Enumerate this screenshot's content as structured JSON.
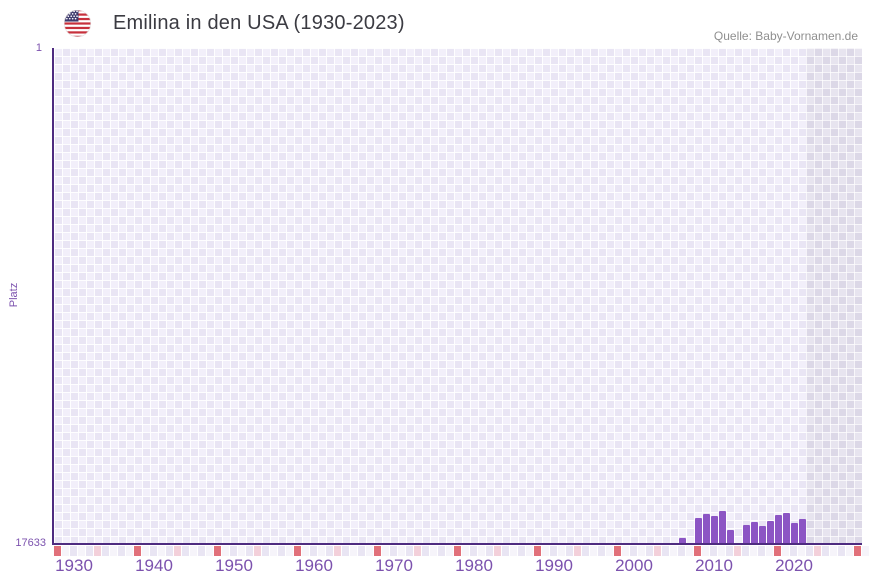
{
  "header": {
    "title": "Emilina in den USA (1930-2023)",
    "source": "Quelle: Baby-Vornamen.de",
    "flag": "usa-flag-icon"
  },
  "chart_data": {
    "type": "bar",
    "title": "Emilina in den USA (1930-2023)",
    "xlabel": "",
    "ylabel": "Platz",
    "y_axis": {
      "top_label": "1",
      "bottom_label": "17633",
      "min": 1,
      "max": 17633,
      "inverted": true
    },
    "x_range": [
      1928,
      2029
    ],
    "x_ticks": [
      "1930",
      "1940",
      "1950",
      "1960",
      "1970",
      "1980",
      "1990",
      "2000",
      "2010",
      "2020"
    ],
    "grid": true,
    "legend": false,
    "series": [
      {
        "name": "Platz",
        "points": [
          {
            "year": 2006,
            "rank": 17455
          },
          {
            "year": 2008,
            "rank": 16740
          },
          {
            "year": 2009,
            "rank": 16605
          },
          {
            "year": 2010,
            "rank": 16685
          },
          {
            "year": 2011,
            "rank": 16510
          },
          {
            "year": 2012,
            "rank": 17175
          },
          {
            "year": 2014,
            "rank": 16995
          },
          {
            "year": 2015,
            "rank": 16900
          },
          {
            "year": 2016,
            "rank": 17045
          },
          {
            "year": 2017,
            "rank": 16835
          },
          {
            "year": 2018,
            "rank": 16640
          },
          {
            "year": 2019,
            "rank": 16570
          },
          {
            "year": 2020,
            "rank": 16910
          },
          {
            "year": 2021,
            "rank": 16785
          }
        ]
      }
    ],
    "no_data_years": [
      2007,
      2013,
      2022,
      2023
    ],
    "future_band": {
      "start_year": 2022,
      "end_year": 2028
    },
    "axis_marker_strip": {
      "red_years": [
        1928,
        1938,
        1948,
        1958,
        1968,
        1978,
        1988,
        1998,
        2008,
        2018,
        2028
      ],
      "pink_years": [
        1933,
        1943,
        1953,
        1963,
        1973,
        1983,
        1993,
        2003,
        2013,
        2023
      ]
    }
  },
  "colors": {
    "bar": "#8c55c4",
    "axis": "#4e2b80",
    "tick_label": "#7c52ae",
    "title": "#3b3b42",
    "source": "#8f8f8f",
    "marker_red": "#e1707a",
    "marker_pink": "#f3d0da",
    "strip_cell_even": "#e9e5f3",
    "strip_cell_odd": "#f6f4fa"
  }
}
